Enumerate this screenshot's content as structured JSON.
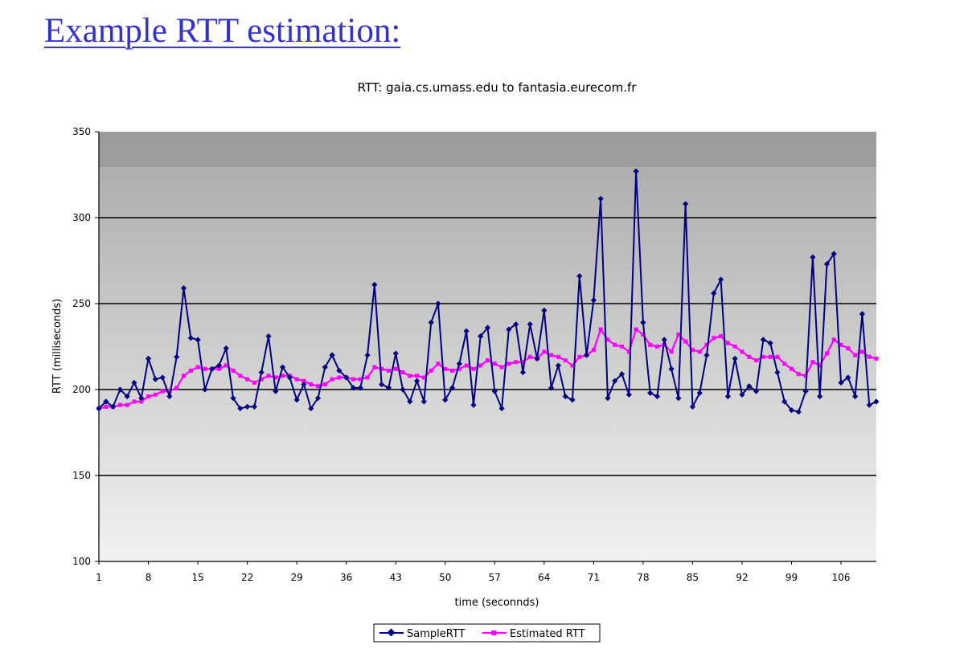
{
  "slide": {
    "title": "Example RTT estimation:"
  },
  "chart_data": {
    "type": "line",
    "title": "RTT: gaia.cs.umass.edu to fantasia.eurecom.fr",
    "xlabel": "time (seconnds)",
    "ylabel": "RTT (milliseconds)",
    "ylim": [
      100,
      350
    ],
    "yticks": [
      100,
      150,
      200,
      250,
      300,
      350
    ],
    "xlim": [
      1,
      111
    ],
    "xticks": [
      1,
      8,
      15,
      22,
      29,
      36,
      43,
      50,
      57,
      64,
      71,
      78,
      85,
      92,
      99,
      106
    ],
    "grid": true,
    "legend_position": "bottom",
    "x": [
      1,
      2,
      3,
      4,
      5,
      6,
      7,
      8,
      9,
      10,
      11,
      12,
      13,
      14,
      15,
      16,
      17,
      18,
      19,
      20,
      21,
      22,
      23,
      24,
      25,
      26,
      27,
      28,
      29,
      30,
      31,
      32,
      33,
      34,
      35,
      36,
      37,
      38,
      39,
      40,
      41,
      42,
      43,
      44,
      45,
      46,
      47,
      48,
      49,
      50,
      51,
      52,
      53,
      54,
      55,
      56,
      57,
      58,
      59,
      60,
      61,
      62,
      63,
      64,
      65,
      66,
      67,
      68,
      69,
      70,
      71,
      72,
      73,
      74,
      75,
      76,
      77,
      78,
      79,
      80,
      81,
      82,
      83,
      84,
      85,
      86,
      87,
      88,
      89,
      90,
      91,
      92,
      93,
      94,
      95,
      96,
      97,
      98,
      99,
      100,
      101,
      102,
      103,
      104,
      105,
      106,
      107,
      108,
      109,
      110,
      111
    ],
    "series": [
      {
        "name": "SampleRTT",
        "color": "#000080",
        "marker": "diamond",
        "values": [
          189,
          193,
          190,
          200,
          196,
          204,
          195,
          218,
          206,
          207,
          196,
          219,
          259,
          230,
          229,
          200,
          212,
          214,
          224,
          195,
          189,
          190,
          190,
          210,
          231,
          199,
          213,
          207,
          194,
          203,
          189,
          195,
          213,
          220,
          211,
          207,
          201,
          201,
          220,
          261,
          203,
          201,
          221,
          200,
          193,
          205,
          193,
          239,
          250,
          194,
          201,
          215,
          234,
          191,
          231,
          236,
          199,
          189,
          235,
          238,
          210,
          238,
          218,
          246,
          201,
          214,
          196,
          194,
          266,
          220,
          252,
          311,
          195,
          205,
          209,
          197,
          327,
          239,
          198,
          196,
          229,
          212,
          195,
          308,
          190,
          198,
          220,
          256,
          264,
          196,
          218,
          197,
          202,
          199,
          229,
          227,
          210,
          193,
          188,
          187,
          199,
          277,
          196,
          273,
          279,
          204,
          207,
          196,
          244,
          191,
          193
        ],
        "_valnote": ""
      },
      {
        "name": "Estimated RTT",
        "color": "#ff00ff",
        "marker": "square",
        "values": [
          189,
          190,
          190,
          191,
          191,
          193,
          193,
          196,
          197,
          199,
          199,
          201,
          208,
          211,
          213,
          212,
          212,
          212,
          214,
          211,
          208,
          206,
          204,
          206,
          208,
          207,
          208,
          208,
          206,
          205,
          203,
          202,
          203,
          206,
          207,
          207,
          206,
          206,
          207,
          213,
          212,
          211,
          212,
          210,
          208,
          208,
          207,
          211,
          215,
          212,
          211,
          212,
          214,
          212,
          214,
          217,
          215,
          213,
          215,
          216,
          216,
          219,
          218,
          222,
          220,
          219,
          217,
          214,
          219,
          220,
          223,
          235,
          229,
          226,
          225,
          222,
          235,
          232,
          226,
          225,
          226,
          222,
          232,
          228,
          223,
          222,
          226,
          230,
          231,
          227,
          225,
          222,
          219,
          217,
          219,
          219,
          219,
          215,
          212,
          209,
          208,
          216,
          214,
          221,
          229,
          226,
          224,
          220,
          222,
          219,
          218
        ]
      }
    ]
  }
}
